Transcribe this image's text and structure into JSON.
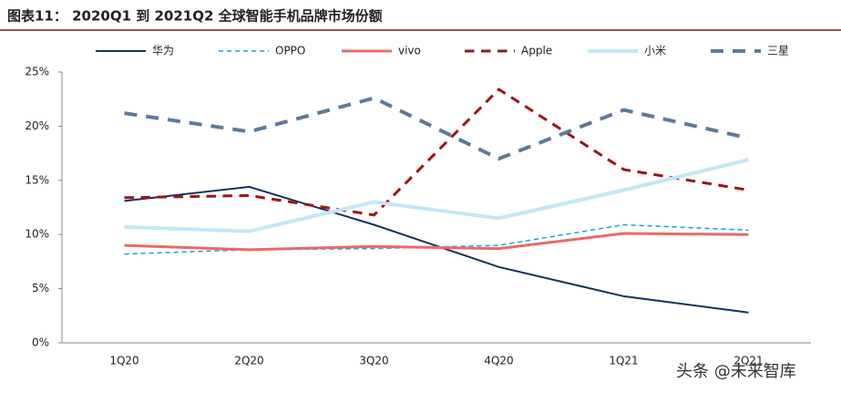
{
  "chart_data": {
    "type": "line",
    "title": "图表11： 2020Q1 到 2021Q2 全球智能手机品牌市场份额",
    "categories": [
      "1Q20",
      "2Q20",
      "3Q20",
      "4Q20",
      "1Q21",
      "2Q21"
    ],
    "series": [
      {
        "name": "华为",
        "color": "#13325e",
        "dash": "solid",
        "width": 2,
        "values": [
          13.1,
          14.4,
          10.9,
          7.0,
          4.3,
          2.8
        ]
      },
      {
        "name": "OPPO",
        "color": "#1aa3d4",
        "dash": "dashed",
        "width": 1.5,
        "values": [
          8.2,
          8.6,
          8.7,
          9.0,
          10.9,
          10.4
        ]
      },
      {
        "name": "vivo",
        "color": "#e96a6a",
        "dash": "solid",
        "width": 3,
        "values": [
          9.0,
          8.6,
          8.9,
          8.7,
          10.1,
          10.0
        ]
      },
      {
        "name": "Apple",
        "color": "#a01218",
        "dash": "dashed",
        "width": 3,
        "values": [
          13.4,
          13.6,
          11.8,
          23.4,
          16.0,
          14.1
        ]
      },
      {
        "name": "小米",
        "color": "#c3e6f7",
        "dash": "solid",
        "width": 4,
        "values": [
          10.7,
          10.3,
          13.0,
          11.5,
          14.1,
          16.9
        ]
      },
      {
        "name": "三星",
        "color": "#5f7a98",
        "dash": "dashed",
        "width": 4,
        "values": [
          21.2,
          19.5,
          22.6,
          17.0,
          21.5,
          18.9
        ]
      }
    ],
    "ylim": [
      0,
      25
    ],
    "yticks": [
      {
        "value": 0,
        "label": "0%"
      },
      {
        "value": 5,
        "label": "5%"
      },
      {
        "value": 10,
        "label": "10%"
      },
      {
        "value": 15,
        "label": "15%"
      },
      {
        "value": 20,
        "label": "20%"
      },
      {
        "value": 25,
        "label": "25%"
      }
    ],
    "grid": false,
    "legend": "top",
    "watermark": "头条 @未来智库"
  }
}
